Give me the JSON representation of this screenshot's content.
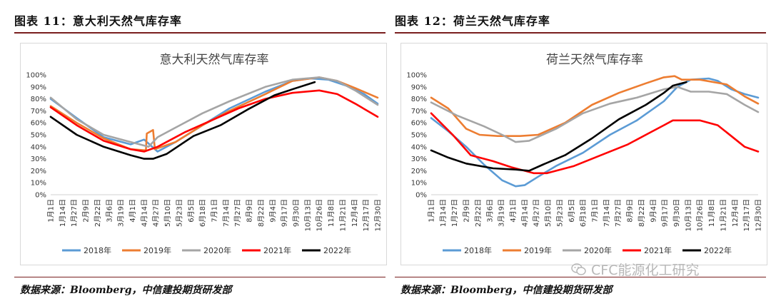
{
  "panels": [
    {
      "fig_title": "图表 11：意大利天然气库存率",
      "source": "数据来源：Bloomberg，中信建投期货研发部",
      "chart_data": {
        "type": "line",
        "title": "意大利天然气库存率",
        "y_ticks": [
          "0%",
          "10%",
          "20%",
          "30%",
          "40%",
          "50%",
          "60%",
          "70%",
          "80%",
          "90%",
          "100%"
        ],
        "ylim": [
          0,
          100
        ],
        "x_ticks": [
          "1月1日",
          "1月14日",
          "1月27日",
          "2月9日",
          "2月22日",
          "3月6日",
          "3月19日",
          "4月1日",
          "4月14日",
          "4月27日",
          "5月10日",
          "5月23日",
          "6月5日",
          "6月18日",
          "7月1日",
          "7月14日",
          "7月27日",
          "8月9日",
          "8月22日",
          "9月4日",
          "9月17日",
          "9月30日",
          "10月13日",
          "10月26日",
          "11月8日",
          "11月21日",
          "12月4日",
          "12月17日",
          "12月30日"
        ],
        "xlim": [
          1,
          365
        ],
        "legend_position": "bottom",
        "series": [
          {
            "name": "2018年",
            "color": "#5b9bd5",
            "x": [
              1,
              30,
              60,
              90,
              105,
              120,
              140,
              170,
              200,
              240,
              270,
              290,
              310,
              330,
              350,
              365
            ],
            "y": [
              80,
              64,
              48,
              42,
              46,
              36,
              44,
              58,
              72,
              86,
              95,
              97,
              96,
              91,
              84,
              76
            ]
          },
          {
            "name": "2019年",
            "color": "#ed7d31",
            "x": [
              1,
              30,
              60,
              90,
              107,
              108,
              115,
              117,
              140,
              170,
              200,
              240,
              270,
              300,
              320,
              340,
              365
            ],
            "y": [
              74,
              60,
              47,
              38,
              37,
              51,
              54,
              38,
              44,
              58,
              70,
              84,
              95,
              98,
              95,
              89,
              81
            ]
          },
          {
            "name": "2020年",
            "color": "#a5a5a5",
            "x": [
              1,
              30,
              60,
              90,
              100,
              110,
              120,
              140,
              170,
              200,
              240,
              270,
              300,
              320,
              340,
              365
            ],
            "y": [
              81,
              63,
              50,
              44,
              42,
              40,
              48,
              56,
              68,
              78,
              90,
              96,
              98,
              95,
              87,
              75
            ]
          },
          {
            "name": "2021年",
            "color": "#ff0000",
            "x": [
              1,
              30,
              60,
              90,
              105,
              120,
              150,
              180,
              210,
              240,
              270,
              300,
              320,
              340,
              365
            ],
            "y": [
              73,
              58,
              45,
              38,
              36,
              40,
              52,
              62,
              72,
              80,
              85,
              87,
              84,
              76,
              65
            ]
          },
          {
            "name": "2022年",
            "color": "#000000",
            "x": [
              1,
              30,
              60,
              90,
              105,
              115,
              130,
              160,
              190,
              220,
              250,
              270,
              295
            ],
            "y": [
              65,
              50,
              40,
              33,
              30,
              30,
              34,
              49,
              58,
              71,
              83,
              88,
              94
            ]
          }
        ]
      }
    },
    {
      "fig_title": "图表 12：荷兰天然气库存率",
      "source": "数据来源：Bloomberg，中信建投期货研发部",
      "chart_data": {
        "type": "line",
        "title": "荷兰天然气库存率",
        "y_ticks": [
          "0%",
          "10%",
          "20%",
          "30%",
          "40%",
          "50%",
          "60%",
          "70%",
          "80%",
          "90%",
          "100%"
        ],
        "ylim": [
          0,
          100
        ],
        "x_ticks": [
          "1月1日",
          "1月14日",
          "1月27日",
          "2月9日",
          "2月22日",
          "3月6日",
          "3月19日",
          "4月1日",
          "4月14日",
          "4月27日",
          "5月10日",
          "5月23日",
          "6月5日",
          "6月18日",
          "7月1日",
          "7月14日",
          "7月27日",
          "8月9日",
          "8月22日",
          "9月4日",
          "9月17日",
          "9月30日",
          "10月13日",
          "10月26日",
          "11月8日",
          "11月21日",
          "12月4日",
          "12月17日",
          "12月30日"
        ],
        "xlim": [
          1,
          365
        ],
        "legend_position": "bottom",
        "series": [
          {
            "name": "2018年",
            "color": "#5b9bd5",
            "x": [
              1,
              20,
              40,
              60,
              80,
              95,
              105,
              120,
              140,
              170,
              200,
              230,
              260,
              275,
              290,
              310,
              320,
              335,
              350,
              365
            ],
            "y": [
              64,
              53,
              40,
              25,
              12,
              7,
              8,
              15,
              24,
              35,
              50,
              62,
              78,
              90,
              96,
              97,
              95,
              88,
              84,
              81
            ]
          },
          {
            "name": "2019年",
            "color": "#ed7d31",
            "x": [
              1,
              20,
              40,
              55,
              75,
              100,
              120,
              150,
              180,
              210,
              240,
              260,
              272,
              280,
              300,
              330,
              350,
              365
            ],
            "y": [
              81,
              72,
              55,
              50,
              49,
              49,
              50,
              60,
              75,
              85,
              93,
              98,
              99,
              96,
              96,
              92,
              82,
              76
            ]
          },
          {
            "name": "2020年",
            "color": "#a5a5a5",
            "x": [
              1,
              30,
              60,
              80,
              95,
              110,
              140,
              170,
              200,
              230,
              260,
              275,
              290,
              310,
              330,
              350,
              365
            ],
            "y": [
              77,
              66,
              57,
              50,
              44,
              45,
              55,
              68,
              76,
              81,
              88,
              90,
              86,
              86,
              84,
              75,
              69
            ]
          },
          {
            "name": "2021年",
            "color": "#ff0000",
            "x": [
              1,
              25,
              45,
              70,
              90,
              105,
              115,
              130,
              160,
              190,
              220,
              245,
              260,
              270,
              300,
              320,
              335,
              350,
              365
            ],
            "y": [
              68,
              50,
              33,
              28,
              23,
              20,
              18,
              18,
              24,
              33,
              42,
              52,
              58,
              62,
              62,
              58,
              49,
              40,
              36
            ]
          },
          {
            "name": "2022年",
            "color": "#000000",
            "x": [
              1,
              20,
              40,
              70,
              95,
              110,
              125,
              150,
              180,
              210,
              240,
              260,
              270,
              285
            ],
            "y": [
              37,
              31,
              26,
              22,
              21,
              20,
              25,
              33,
              47,
              63,
              75,
              85,
              91,
              94
            ]
          }
        ]
      }
    }
  ],
  "watermark": "CFC能源化工研究"
}
